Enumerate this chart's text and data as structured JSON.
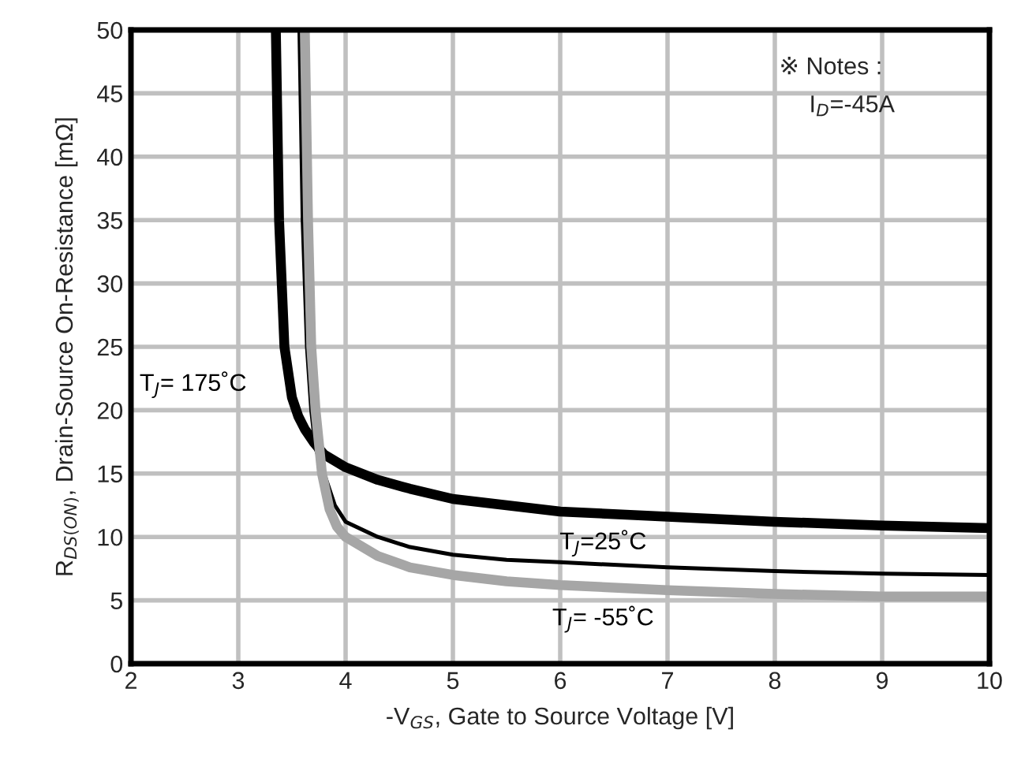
{
  "chart_data": {
    "type": "line",
    "xlabel": "-V$_{GS}$, Gate to Source Voltage [V]",
    "ylabel": "R$_{DS(ON)}$, Drain-Source On-Resistance [mΩ]",
    "xlim": [
      2,
      10
    ],
    "xticks": [
      2,
      3,
      4,
      5,
      6,
      7,
      8,
      9,
      10
    ],
    "ylim": [
      0,
      50
    ],
    "yticks": [
      0,
      5,
      10,
      15,
      20,
      25,
      30,
      35,
      40,
      45,
      50
    ],
    "grid": true,
    "line_style": "solid",
    "marker": "none",
    "annotations": [
      "※ Notes :",
      "I$_{D}$=-45A"
    ],
    "series": [
      {
        "name": "T$_{J}$= 175˚C",
        "color": "#000000",
        "x": [
          3.35,
          3.38,
          3.43,
          3.5,
          3.56,
          3.62,
          3.7,
          3.8,
          4.0,
          4.3,
          4.6,
          5.0,
          5.5,
          6.0,
          7.0,
          8.0,
          9.0,
          10.0
        ],
        "values": [
          50,
          35,
          25,
          21,
          19.5,
          18.5,
          17.5,
          16.5,
          15.5,
          14.5,
          13.8,
          13.0,
          12.5,
          12.0,
          11.6,
          11.2,
          10.9,
          10.7
        ]
      },
      {
        "name": "T$_{J}$=25˚C",
        "color": "#000000",
        "x": [
          3.57,
          3.6,
          3.64,
          3.68,
          3.72,
          3.9,
          4.0,
          4.3,
          4.6,
          5.0,
          5.5,
          6.0,
          7.0,
          8.0,
          9.0,
          10.0
        ],
        "values": [
          50,
          35,
          25,
          20,
          17,
          12.5,
          11.2,
          10.0,
          9.2,
          8.6,
          8.2,
          8.0,
          7.6,
          7.3,
          7.1,
          7.0
        ]
      },
      {
        "name": "T$_{J}$= -55˚C",
        "color": "#a6a6a6",
        "x": [
          3.62,
          3.65,
          3.68,
          3.72,
          3.78,
          3.85,
          3.92,
          4.0,
          4.3,
          4.6,
          5.0,
          5.5,
          6.0,
          7.0,
          8.0,
          9.0,
          10.0
        ],
        "values": [
          50,
          35,
          25,
          20,
          15,
          12.2,
          10.8,
          10.0,
          8.5,
          7.6,
          7.0,
          6.5,
          6.2,
          5.8,
          5.5,
          5.3,
          5.3
        ]
      }
    ]
  }
}
